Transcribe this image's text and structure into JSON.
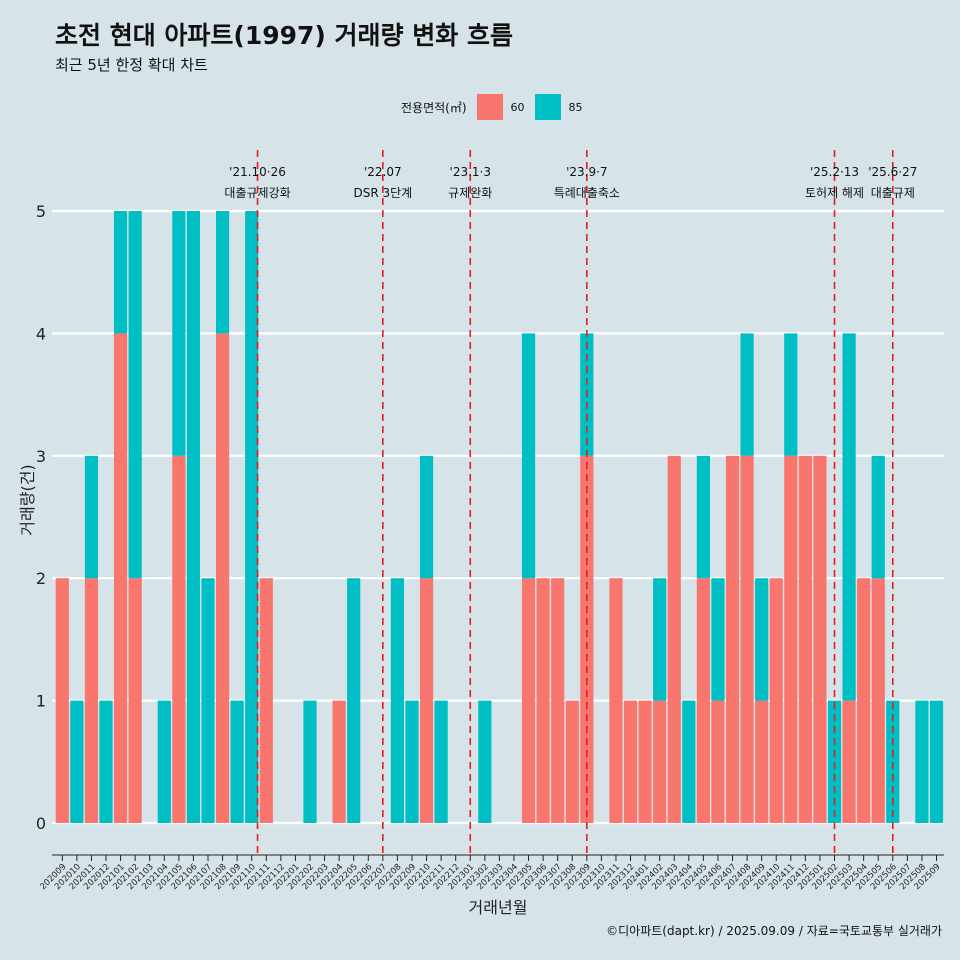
{
  "title": "초전 현대 아파트(1997) 거래량 변화 흐름",
  "subtitle": "최근 5년 한정 확대 차트",
  "credit": "©디아파트(dapt.kr) / 2025.09.09 / 자료=국토교통부 실거래가",
  "colors": {
    "s60": "#F8766D",
    "s85": "#00BFC4",
    "event_line": "#e02020",
    "grid": "#ffffff",
    "background": "#d6e4ea"
  },
  "legend": {
    "title": "전용면적(㎡)",
    "items": [
      {
        "label": "60",
        "color": "#F8766D"
      },
      {
        "label": "85",
        "color": "#00BFC4"
      }
    ]
  },
  "chart_data": {
    "type": "bar",
    "title": "초전 현대 아파트(1997) 거래량 변화 흐름",
    "xlabel": "거래년월",
    "ylabel": "거래량(건)",
    "ylim": [
      0,
      5
    ],
    "y_ticks": [
      "0",
      "1",
      "2",
      "3",
      "4",
      "5"
    ],
    "categories": [
      "202009",
      "202010",
      "202011",
      "202012",
      "202101",
      "202102",
      "202103",
      "202104",
      "202105",
      "202106",
      "202107",
      "202108",
      "202109",
      "202110",
      "202111",
      "202112",
      "202201",
      "202202",
      "202203",
      "202204",
      "202205",
      "202206",
      "202207",
      "202208",
      "202209",
      "202210",
      "202211",
      "202212",
      "202301",
      "202302",
      "202303",
      "202304",
      "202305",
      "202306",
      "202307",
      "202308",
      "202309",
      "202310",
      "202311",
      "202312",
      "202401",
      "202402",
      "202403",
      "202404",
      "202405",
      "202406",
      "202407",
      "202408",
      "202409",
      "202410",
      "202411",
      "202412",
      "202501",
      "202502",
      "202503",
      "202504",
      "202505",
      "202506",
      "202507",
      "202508",
      "202509"
    ],
    "series": [
      {
        "name": "60",
        "values": [
          2,
          0,
          2,
          0,
          4,
          2,
          0,
          0,
          3,
          0,
          0,
          4,
          0,
          0,
          2,
          0,
          0,
          0,
          0,
          1,
          0,
          0,
          0,
          0,
          0,
          2,
          0,
          0,
          0,
          0,
          0,
          0,
          2,
          2,
          2,
          1,
          3,
          0,
          2,
          1,
          1,
          1,
          3,
          0,
          2,
          1,
          3,
          3,
          1,
          2,
          3,
          3,
          3,
          0,
          1,
          2,
          2,
          0,
          0,
          0,
          0
        ]
      },
      {
        "name": "85",
        "values": [
          0,
          1,
          1,
          1,
          1,
          3,
          0,
          1,
          2,
          5,
          2,
          1,
          1,
          5,
          0,
          0,
          0,
          1,
          0,
          0,
          2,
          0,
          0,
          2,
          1,
          1,
          1,
          0,
          0,
          1,
          0,
          0,
          2,
          0,
          0,
          0,
          1,
          0,
          0,
          0,
          0,
          1,
          0,
          1,
          1,
          1,
          0,
          1,
          1,
          0,
          1,
          0,
          0,
          1,
          3,
          0,
          1,
          1,
          0,
          1,
          1
        ]
      }
    ],
    "events": [
      {
        "date_label": "'21.10·26",
        "desc": "대출규제강화",
        "x_index": 13.4
      },
      {
        "date_label": "'22.07",
        "desc": "DSR 3단계",
        "x_index": 22
      },
      {
        "date_label": "'23.1·3",
        "desc": "규제완화",
        "x_index": 28
      },
      {
        "date_label": "'23.9·7",
        "desc": "특례대출축소",
        "x_index": 36
      },
      {
        "date_label": "'25.2·13",
        "desc": "토허제 해제",
        "x_index": 53
      },
      {
        "date_label": "'25.6·27",
        "desc": "대출규제",
        "x_index": 57
      }
    ]
  }
}
